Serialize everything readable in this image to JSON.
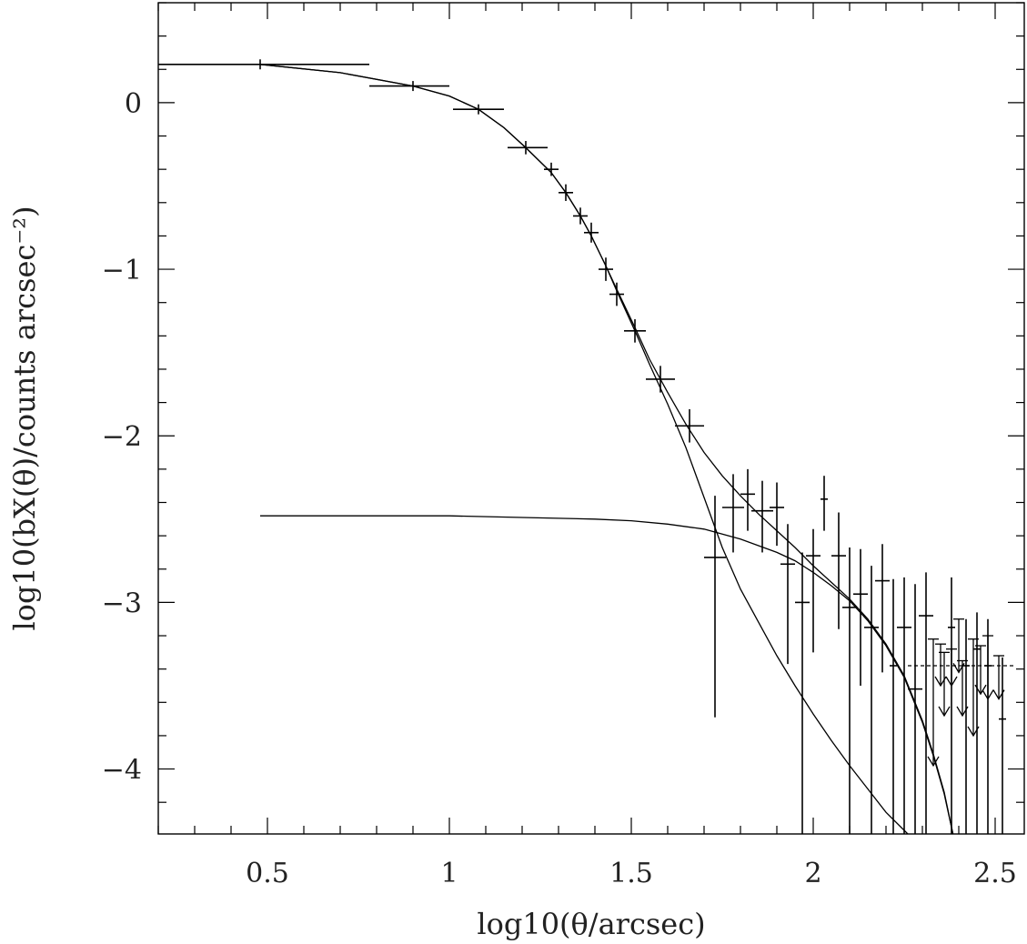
{
  "chart_data": {
    "type": "scatter",
    "xlim": [
      0.2,
      2.58
    ],
    "ylim": [
      -4.39,
      0.6
    ],
    "x_ticks": [
      0.5,
      1,
      1.5,
      2,
      2.5
    ],
    "x_tick_labels": [
      "0.5",
      "1",
      "1.5",
      "2",
      "2.5"
    ],
    "y_ticks": [
      0,
      -1,
      -2,
      -3,
      -4
    ],
    "y_tick_labels": [
      "0",
      "−1",
      "−2",
      "−3",
      "−4"
    ],
    "x_minor_step": 0.1,
    "y_minor_step": 0.2,
    "xlabel": "log10(θ/arcsec)",
    "ylabel": "log10(bX(θ)/counts arcsec⁻²)",
    "measurements": [
      {
        "x": 0.48,
        "y": 0.23,
        "xerr": [
          0.28,
          0.3
        ],
        "yerr": [
          0.03,
          0.03
        ]
      },
      {
        "x": 0.9,
        "y": 0.1,
        "xerr": [
          0.12,
          0.1
        ],
        "yerr": [
          0.03,
          0.03
        ]
      },
      {
        "x": 1.08,
        "y": -0.04,
        "xerr": [
          0.07,
          0.07
        ],
        "yerr": [
          0.03,
          0.03
        ]
      },
      {
        "x": 1.21,
        "y": -0.27,
        "xerr": [
          0.05,
          0.06
        ],
        "yerr": [
          0.04,
          0.04
        ]
      },
      {
        "x": 1.28,
        "y": -0.4,
        "xerr": [
          0.02,
          0.02
        ],
        "yerr": [
          0.04,
          0.04
        ]
      },
      {
        "x": 1.32,
        "y": -0.54,
        "xerr": [
          0.02,
          0.02
        ],
        "yerr": [
          0.05,
          0.05
        ]
      },
      {
        "x": 1.36,
        "y": -0.68,
        "xerr": [
          0.02,
          0.02
        ],
        "yerr": [
          0.05,
          0.05
        ]
      },
      {
        "x": 1.39,
        "y": -0.78,
        "xerr": [
          0.02,
          0.02
        ],
        "yerr": [
          0.06,
          0.06
        ]
      },
      {
        "x": 1.43,
        "y": -1.0,
        "xerr": [
          0.02,
          0.02
        ],
        "yerr": [
          0.07,
          0.07
        ]
      },
      {
        "x": 1.46,
        "y": -1.15,
        "xerr": [
          0.02,
          0.02
        ],
        "yerr": [
          0.07,
          0.07
        ]
      },
      {
        "x": 1.51,
        "y": -1.37,
        "xerr": [
          0.03,
          0.03
        ],
        "yerr": [
          0.07,
          0.07
        ]
      },
      {
        "x": 1.58,
        "y": -1.66,
        "xerr": [
          0.04,
          0.04
        ],
        "yerr": [
          0.08,
          0.08
        ]
      },
      {
        "x": 1.66,
        "y": -1.94,
        "xerr": [
          0.04,
          0.04
        ],
        "yerr": [
          0.1,
          0.1
        ]
      },
      {
        "x": 1.73,
        "y": -2.73,
        "xerr": [
          0.03,
          0.03
        ],
        "yerr": [
          0.96,
          0.37
        ]
      },
      {
        "x": 1.78,
        "y": -2.43,
        "xerr": [
          0.03,
          0.03
        ],
        "yerr": [
          0.27,
          0.2
        ]
      },
      {
        "x": 1.82,
        "y": -2.35,
        "xerr": [
          0.02,
          0.02
        ],
        "yerr": [
          0.22,
          0.15
        ]
      },
      {
        "x": 1.86,
        "y": -2.45,
        "xerr": [
          0.03,
          0.03
        ],
        "yerr": [
          0.25,
          0.18
        ]
      },
      {
        "x": 1.9,
        "y": -2.43,
        "xerr": [
          0.02,
          0.02
        ],
        "yerr": [
          0.23,
          0.15
        ]
      },
      {
        "x": 1.93,
        "y": -2.77,
        "xerr": [
          0.02,
          0.02
        ],
        "yerr": [
          0.6,
          0.24
        ]
      },
      {
        "x": 1.97,
        "y": -3.0,
        "xerr": [
          0.02,
          0.02
        ],
        "yerr": [
          1.39,
          0.3
        ]
      },
      {
        "x": 2.0,
        "y": -2.72,
        "xerr": [
          0.02,
          0.02
        ],
        "yerr": [
          0.58,
          0.16
        ]
      },
      {
        "x": 2.03,
        "y": -2.38,
        "xerr": [
          0.01,
          0.01
        ],
        "yerr": [
          0.19,
          0.14
        ]
      },
      {
        "x": 2.07,
        "y": -2.72,
        "xerr": [
          0.02,
          0.02
        ],
        "yerr": [
          0.44,
          0.26
        ]
      },
      {
        "x": 2.1,
        "y": -3.03,
        "xerr": [
          0.02,
          0.02
        ],
        "yerr": [
          1.36,
          0.36
        ]
      },
      {
        "x": 2.13,
        "y": -2.95,
        "xerr": [
          0.02,
          0.02
        ],
        "yerr": [
          0.55,
          0.27
        ]
      },
      {
        "x": 2.16,
        "y": -3.15,
        "xerr": [
          0.02,
          0.02
        ],
        "yerr": [
          1.24,
          0.37
        ]
      },
      {
        "x": 2.19,
        "y": -2.87,
        "xerr": [
          0.02,
          0.02
        ],
        "yerr": [
          0.55,
          0.22
        ]
      },
      {
        "x": 2.22,
        "y": -3.38,
        "xerr": [
          0.01,
          0.01
        ],
        "yerr": [
          1.01,
          0.52
        ]
      },
      {
        "x": 2.25,
        "y": -3.15,
        "xerr": [
          0.02,
          0.02
        ],
        "yerr": [
          1.24,
          0.3
        ]
      },
      {
        "x": 2.28,
        "y": -3.52,
        "xerr": [
          0.02,
          0.02
        ],
        "yerr": [
          0.87,
          0.63
        ]
      },
      {
        "x": 2.31,
        "y": -3.08,
        "xerr": [
          0.02,
          0.02
        ],
        "yerr": [
          1.31,
          0.26
        ]
      },
      {
        "x": 2.38,
        "y": -3.15,
        "xerr": [
          0.01,
          0.01
        ],
        "yerr": [
          1.24,
          0.3
        ]
      },
      {
        "x": 2.42,
        "y": -3.38,
        "xerr": [
          0.01,
          0.01
        ],
        "yerr": [
          1.01,
          0.28
        ]
      },
      {
        "x": 2.45,
        "y": -3.28,
        "xerr": [
          0.01,
          0.01
        ],
        "yerr": [
          1.11,
          0.22
        ]
      },
      {
        "x": 2.48,
        "y": -3.38,
        "xerr": [
          0.01,
          0.01
        ],
        "yerr": [
          1.01,
          0.28
        ]
      },
      {
        "x": 2.52,
        "y": -3.7,
        "xerr": [
          0.01,
          0.01
        ],
        "yerr": [
          0.69,
          0.37
        ]
      }
    ],
    "upper_limits": [
      {
        "x": 2.33,
        "y": -3.22,
        "low": -3.98
      },
      {
        "x": 2.35,
        "y": -3.25,
        "low": -3.5
      },
      {
        "x": 2.36,
        "y": -3.3,
        "low": -3.68
      },
      {
        "x": 2.38,
        "y": -3.28,
        "low": -3.5
      },
      {
        "x": 2.4,
        "y": -3.1,
        "low": -3.42
      },
      {
        "x": 2.41,
        "y": -3.35,
        "low": -3.68
      },
      {
        "x": 2.44,
        "y": -3.22,
        "low": -3.8
      },
      {
        "x": 2.46,
        "y": -3.26,
        "low": -3.55
      },
      {
        "x": 2.48,
        "y": -3.2,
        "low": -3.58
      },
      {
        "x": 2.51,
        "y": -3.32,
        "low": -3.58
      }
    ],
    "background_level": {
      "y": -3.38,
      "x_range": [
        2.26,
        2.55
      ]
    },
    "curves": [
      {
        "name": "",
        "points": [
          [
            0.2,
            0.23
          ],
          [
            0.48,
            0.23
          ],
          [
            0.7,
            0.18
          ],
          [
            0.9,
            0.1
          ],
          [
            1.0,
            0.04
          ],
          [
            1.08,
            -0.04
          ],
          [
            1.15,
            -0.15
          ],
          [
            1.21,
            -0.27
          ],
          [
            1.28,
            -0.42
          ],
          [
            1.32,
            -0.54
          ],
          [
            1.36,
            -0.68
          ],
          [
            1.39,
            -0.8
          ],
          [
            1.43,
            -0.98
          ],
          [
            1.46,
            -1.13
          ],
          [
            1.51,
            -1.37
          ],
          [
            1.55,
            -1.57
          ],
          [
            1.6,
            -1.81
          ],
          [
            1.65,
            -2.07
          ],
          [
            1.7,
            -2.37
          ],
          [
            1.75,
            -2.67
          ],
          [
            1.8,
            -2.92
          ],
          [
            1.85,
            -3.12
          ],
          [
            1.9,
            -3.32
          ],
          [
            1.95,
            -3.5
          ],
          [
            2.0,
            -3.67
          ],
          [
            2.05,
            -3.83
          ],
          [
            2.1,
            -3.98
          ],
          [
            2.15,
            -4.12
          ],
          [
            2.2,
            -4.26
          ],
          [
            2.26,
            -4.39
          ]
        ]
      },
      {
        "name": "",
        "points": [
          [
            0.48,
            -2.48
          ],
          [
            0.8,
            -2.48
          ],
          [
            1.0,
            -2.48
          ],
          [
            1.2,
            -2.49
          ],
          [
            1.4,
            -2.5
          ],
          [
            1.5,
            -2.51
          ],
          [
            1.6,
            -2.53
          ],
          [
            1.7,
            -2.56
          ],
          [
            1.8,
            -2.62
          ],
          [
            1.9,
            -2.7
          ],
          [
            1.95,
            -2.75
          ],
          [
            2.0,
            -2.82
          ],
          [
            2.05,
            -2.9
          ],
          [
            2.1,
            -2.99
          ],
          [
            2.15,
            -3.11
          ],
          [
            2.2,
            -3.26
          ],
          [
            2.25,
            -3.45
          ],
          [
            2.3,
            -3.72
          ],
          [
            2.33,
            -3.92
          ],
          [
            2.36,
            -4.15
          ],
          [
            2.384,
            -4.39
          ]
        ]
      },
      {
        "name": "",
        "points": [
          [
            0.2,
            0.23
          ],
          [
            0.48,
            0.23
          ],
          [
            0.7,
            0.18
          ],
          [
            0.9,
            0.1
          ],
          [
            1.0,
            0.04
          ],
          [
            1.08,
            -0.04
          ],
          [
            1.15,
            -0.15
          ],
          [
            1.21,
            -0.27
          ],
          [
            1.28,
            -0.42
          ],
          [
            1.32,
            -0.54
          ],
          [
            1.36,
            -0.68
          ],
          [
            1.39,
            -0.8
          ],
          [
            1.43,
            -0.98
          ],
          [
            1.46,
            -1.12
          ],
          [
            1.51,
            -1.35
          ],
          [
            1.55,
            -1.54
          ],
          [
            1.6,
            -1.74
          ],
          [
            1.65,
            -1.93
          ],
          [
            1.7,
            -2.1
          ],
          [
            1.75,
            -2.24
          ],
          [
            1.8,
            -2.36
          ],
          [
            1.85,
            -2.47
          ],
          [
            1.9,
            -2.57
          ],
          [
            1.95,
            -2.67
          ],
          [
            2.0,
            -2.78
          ],
          [
            2.05,
            -2.88
          ],
          [
            2.1,
            -2.98
          ],
          [
            2.15,
            -3.1
          ],
          [
            2.2,
            -3.25
          ],
          [
            2.25,
            -3.44
          ],
          [
            2.3,
            -3.71
          ],
          [
            2.33,
            -3.91
          ],
          [
            2.36,
            -4.14
          ],
          [
            2.384,
            -4.39
          ]
        ]
      }
    ]
  }
}
